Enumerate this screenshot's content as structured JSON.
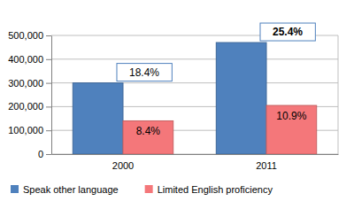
{
  "chart_data": {
    "type": "bar",
    "categories": [
      "2000",
      "2011"
    ],
    "series": [
      {
        "name": "Speak other language",
        "color": "#4f81bd",
        "values": [
          300000,
          470000
        ],
        "labels": [
          "18.4%",
          "25.4%"
        ]
      },
      {
        "name": "Limited English proficiency",
        "color": "#f4777a",
        "values": [
          140000,
          205000
        ],
        "labels": [
          "8.4%",
          "10.9%"
        ]
      }
    ],
    "ylim": [
      0,
      500000
    ],
    "yticks": [
      0,
      {
        "value": 100000,
        "label": "100,000"
      },
      {
        "value": 200000,
        "label": "200,000"
      },
      {
        "value": 300000,
        "label": "300,000"
      },
      {
        "value": 400000,
        "label": "400,000"
      },
      {
        "value": 500000,
        "label": "500,000"
      }
    ],
    "grid": true,
    "legend": "bottom"
  }
}
